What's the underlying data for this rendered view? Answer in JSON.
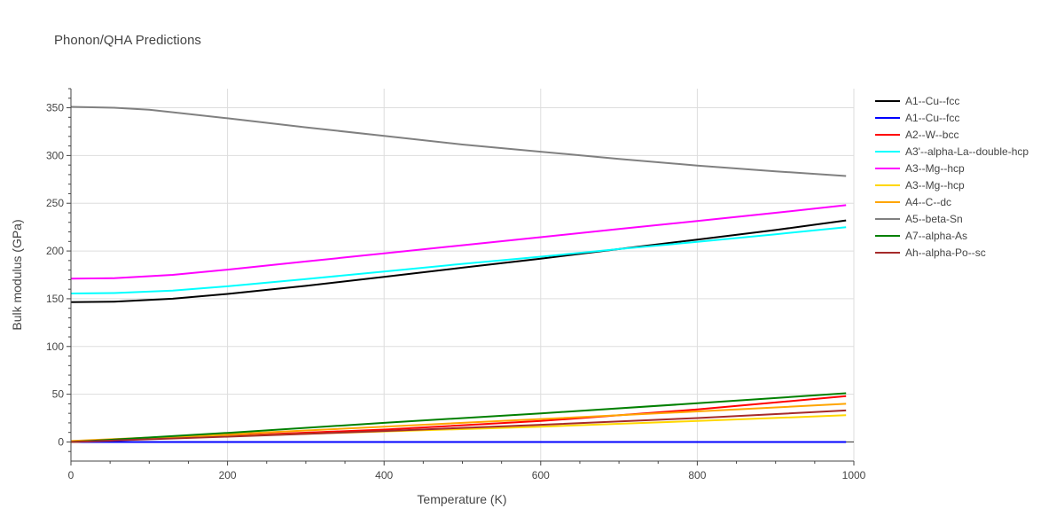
{
  "chart_data": {
    "type": "line",
    "title": "Phonon/QHA Predictions",
    "xlabel": "Temperature (K)",
    "ylabel": "Bulk modulus (GPa)",
    "xlim": [
      0,
      1000
    ],
    "ylim": [
      -20,
      370
    ],
    "xticks": [
      0,
      200,
      400,
      600,
      800,
      1000
    ],
    "yticks": [
      0,
      50,
      100,
      150,
      200,
      250,
      300,
      350
    ],
    "grid": true,
    "legend_position": "right",
    "series": [
      {
        "name": "A1--Cu--fcc",
        "color": "#000000",
        "x": [
          0,
          55,
          130,
          200,
          300,
          400,
          500,
          600,
          700,
          800,
          900,
          990
        ],
        "y": [
          146.5,
          147,
          150,
          155,
          163.5,
          173,
          182.5,
          192,
          202,
          212,
          222,
          232
        ]
      },
      {
        "name": "A1--Cu--fcc",
        "color": "#0000ff",
        "x": [
          0,
          990
        ],
        "y": [
          0,
          0
        ]
      },
      {
        "name": "A2--W--bcc",
        "color": "#ff0000",
        "x": [
          0,
          55,
          200,
          400,
          600,
          800,
          990
        ],
        "y": [
          0,
          2,
          6.5,
          13,
          22,
          34,
          48
        ]
      },
      {
        "name": "A3'--alpha-La--double-hcp",
        "color": "#00ffff",
        "x": [
          0,
          55,
          130,
          200,
          300,
          400,
          500,
          600,
          700,
          800,
          900,
          990
        ],
        "y": [
          155.5,
          156,
          158.5,
          163,
          170.5,
          178.5,
          186.5,
          194,
          202,
          209.5,
          217.5,
          225
        ]
      },
      {
        "name": "A3--Mg--hcp",
        "color": "#ff00ff",
        "x": [
          0,
          55,
          130,
          200,
          300,
          400,
          500,
          600,
          700,
          800,
          900,
          990
        ],
        "y": [
          171,
          171.5,
          175,
          180.5,
          189,
          197.5,
          206,
          214.5,
          223,
          231.5,
          240,
          248
        ]
      },
      {
        "name": "A3--Mg--hcp",
        "color": "#ffd700",
        "x": [
          0,
          55,
          200,
          400,
          600,
          800,
          990
        ],
        "y": [
          0,
          2,
          6,
          11,
          16,
          22,
          28
        ]
      },
      {
        "name": "A4--C--dc",
        "color": "#ffa500",
        "x": [
          0,
          55,
          200,
          400,
          600,
          800,
          990
        ],
        "y": [
          1,
          3,
          8,
          16,
          24,
          32,
          40
        ]
      },
      {
        "name": "A5--beta-Sn",
        "color": "#808080",
        "x": [
          0,
          55,
          100,
          200,
          300,
          400,
          500,
          600,
          700,
          800,
          900,
          990
        ],
        "y": [
          351,
          350,
          348,
          339,
          329.5,
          320.5,
          311.5,
          304,
          296.5,
          289.5,
          283.5,
          278.5
        ]
      },
      {
        "name": "A7--alpha-As",
        "color": "#008000",
        "x": [
          0,
          55,
          200,
          400,
          600,
          800,
          990
        ],
        "y": [
          0,
          2.5,
          9.5,
          20,
          30,
          40.5,
          51
        ]
      },
      {
        "name": "Ah--alpha-Po--sc",
        "color": "#a52a2a",
        "x": [
          0,
          55,
          200,
          400,
          600,
          800,
          990
        ],
        "y": [
          0,
          1.5,
          5.5,
          11.5,
          18,
          25,
          33
        ]
      }
    ]
  }
}
